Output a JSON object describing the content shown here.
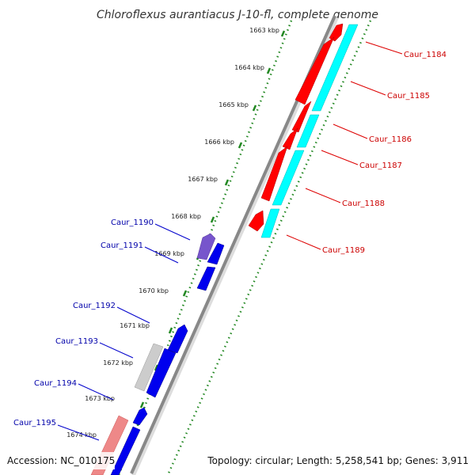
{
  "title": "Chloroflexus aurantiacus J-10-fl, complete genome",
  "footer": {
    "accession": "Accession: NC_010175",
    "topology": "Topology: circular; Length: 5,258,541 bp; Genes: 3,911"
  },
  "kbp_labels": [
    "1663 kbp",
    "1664 kbp",
    "1665 kbp",
    "1666 kbp",
    "1667 kbp",
    "1668 kbp",
    "1669 kbp",
    "1670 kbp",
    "1671 kbp",
    "1672 kbp",
    "1673 kbp",
    "1674 kbp"
  ],
  "gene_labels_forward": [
    "Caur_1184",
    "Caur_1185",
    "Caur_1186",
    "Caur_1187",
    "Caur_1188",
    "Caur_1189"
  ],
  "gene_labels_reverse": [
    "Caur_1190",
    "Caur_1191",
    "Caur_1192",
    "Caur_1193",
    "Caur_1194",
    "Caur_1195"
  ],
  "colors": {
    "forward_gene": "#ff0000",
    "forward_feature": "#00ffff",
    "reverse_gene": "#0000ee",
    "reverse_feature_purple": "#7755cc",
    "reverse_feature_grey": "#cccccc",
    "reverse_feature_pink": "#ee8888",
    "ticks": "#228822",
    "backbone": "#888888",
    "label_forward": "#cc0000",
    "label_reverse": "#0000aa"
  }
}
